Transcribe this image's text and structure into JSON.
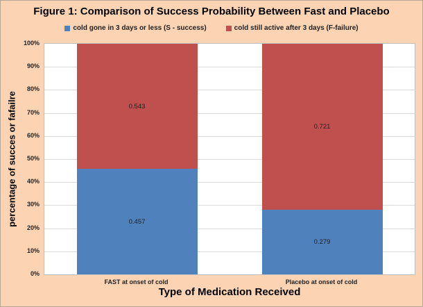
{
  "legend": [
    {
      "label": "cold gone in 3 days or less (S - success)",
      "color": "#4F81BD"
    },
    {
      "label": "cold still active after 3 days (F-failure)",
      "color": "#C0504D"
    }
  ],
  "chart_data": {
    "type": "bar",
    "stacked": true,
    "title": "Figure 1: Comparison of Success Probability Between Fast and Placebo",
    "xlabel": "Type of Medication Received",
    "ylabel": "percentage of succes or fafailre",
    "categories": [
      "FAST at onset of cold",
      "Placebo at onset of cold"
    ],
    "series": [
      {
        "name": "cold gone in 3 days or less (S - success)",
        "color": "#4F81BD",
        "values": [
          0.457,
          0.279
        ],
        "labels": [
          "0.457",
          "0.279"
        ]
      },
      {
        "name": "cold still active after 3 days (F-failure)",
        "color": "#C0504D",
        "values": [
          0.543,
          0.721
        ],
        "labels": [
          "0.543",
          "0.721"
        ]
      }
    ],
    "ylim": [
      0,
      1
    ],
    "ytick_labels": [
      "0%",
      "10%",
      "20%",
      "30%",
      "40%",
      "50%",
      "60%",
      "70%",
      "80%",
      "90%",
      "100%"
    ],
    "grid": true,
    "legend_position": "top",
    "colors": {
      "background": "#FCD4B4",
      "plot_background": "#FFFFFF",
      "gridline": "#D9D9D9",
      "plot_border": "#BFBFBF",
      "text": "#1F1F1F"
    }
  }
}
